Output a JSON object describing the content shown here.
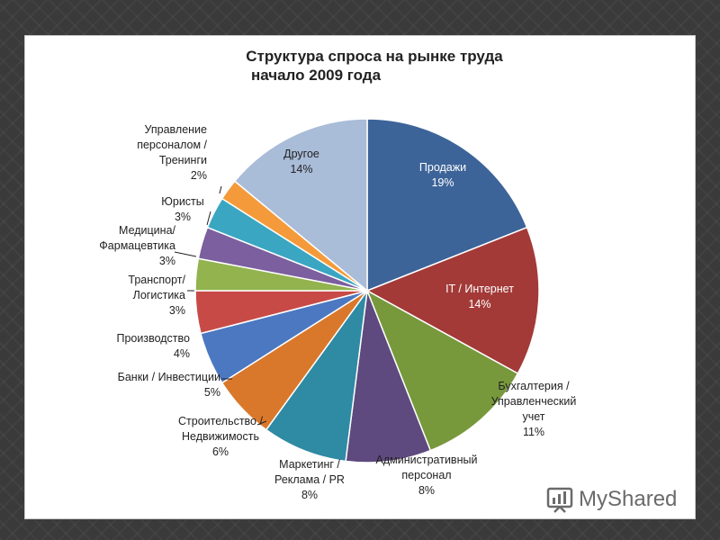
{
  "chart_data": {
    "type": "pie",
    "title_line1": "Структура спроса на рынке труда",
    "title_line2": "начало 2009 года",
    "slices": [
      {
        "label": [
          "Продажи",
          "19%"
        ],
        "value": 19,
        "color": "#3d6499"
      },
      {
        "label": [
          "IT / Интернет",
          "14%"
        ],
        "value": 14,
        "color": "#a33a38"
      },
      {
        "label": [
          "Бухгалтерия /",
          "Управленческий",
          "учет",
          "11%"
        ],
        "value": 11,
        "color": "#77993c"
      },
      {
        "label": [
          "Административный",
          "персонал",
          "8%"
        ],
        "value": 8,
        "color": "#5e4a7e"
      },
      {
        "label": [
          "Маркетинг /",
          "Реклама / PR",
          "8%"
        ],
        "value": 8,
        "color": "#2f8aa3"
      },
      {
        "label": [
          "Строительство /",
          "Недвижимость",
          "6%"
        ],
        "value": 6,
        "color": "#d9782b"
      },
      {
        "label": [
          "Банки / Инвестиции",
          "5%"
        ],
        "value": 5,
        "color": "#4c78c1"
      },
      {
        "label": [
          "Производство",
          "4%"
        ],
        "value": 4,
        "color": "#c84a47"
      },
      {
        "label": [
          "Транспорт/",
          "Логистика",
          "3%"
        ],
        "value": 3,
        "color": "#92b34e"
      },
      {
        "label": [
          "Медицина/",
          "Фармацевтика",
          "3%"
        ],
        "value": 3,
        "color": "#7b5f9e"
      },
      {
        "label": [
          "Юристы",
          "3%"
        ],
        "value": 3,
        "color": "#3ba6c2"
      },
      {
        "label": [
          "Управление",
          "персоналом /",
          "Тренинги",
          "2%"
        ],
        "value": 2,
        "color": "#f59a3a"
      },
      {
        "label": [
          "Другое",
          "14%"
        ],
        "value": 14,
        "color": "#a9bcd8"
      }
    ]
  },
  "watermark": {
    "text": "MyShared",
    "icon": "myshared-logo-icon"
  }
}
